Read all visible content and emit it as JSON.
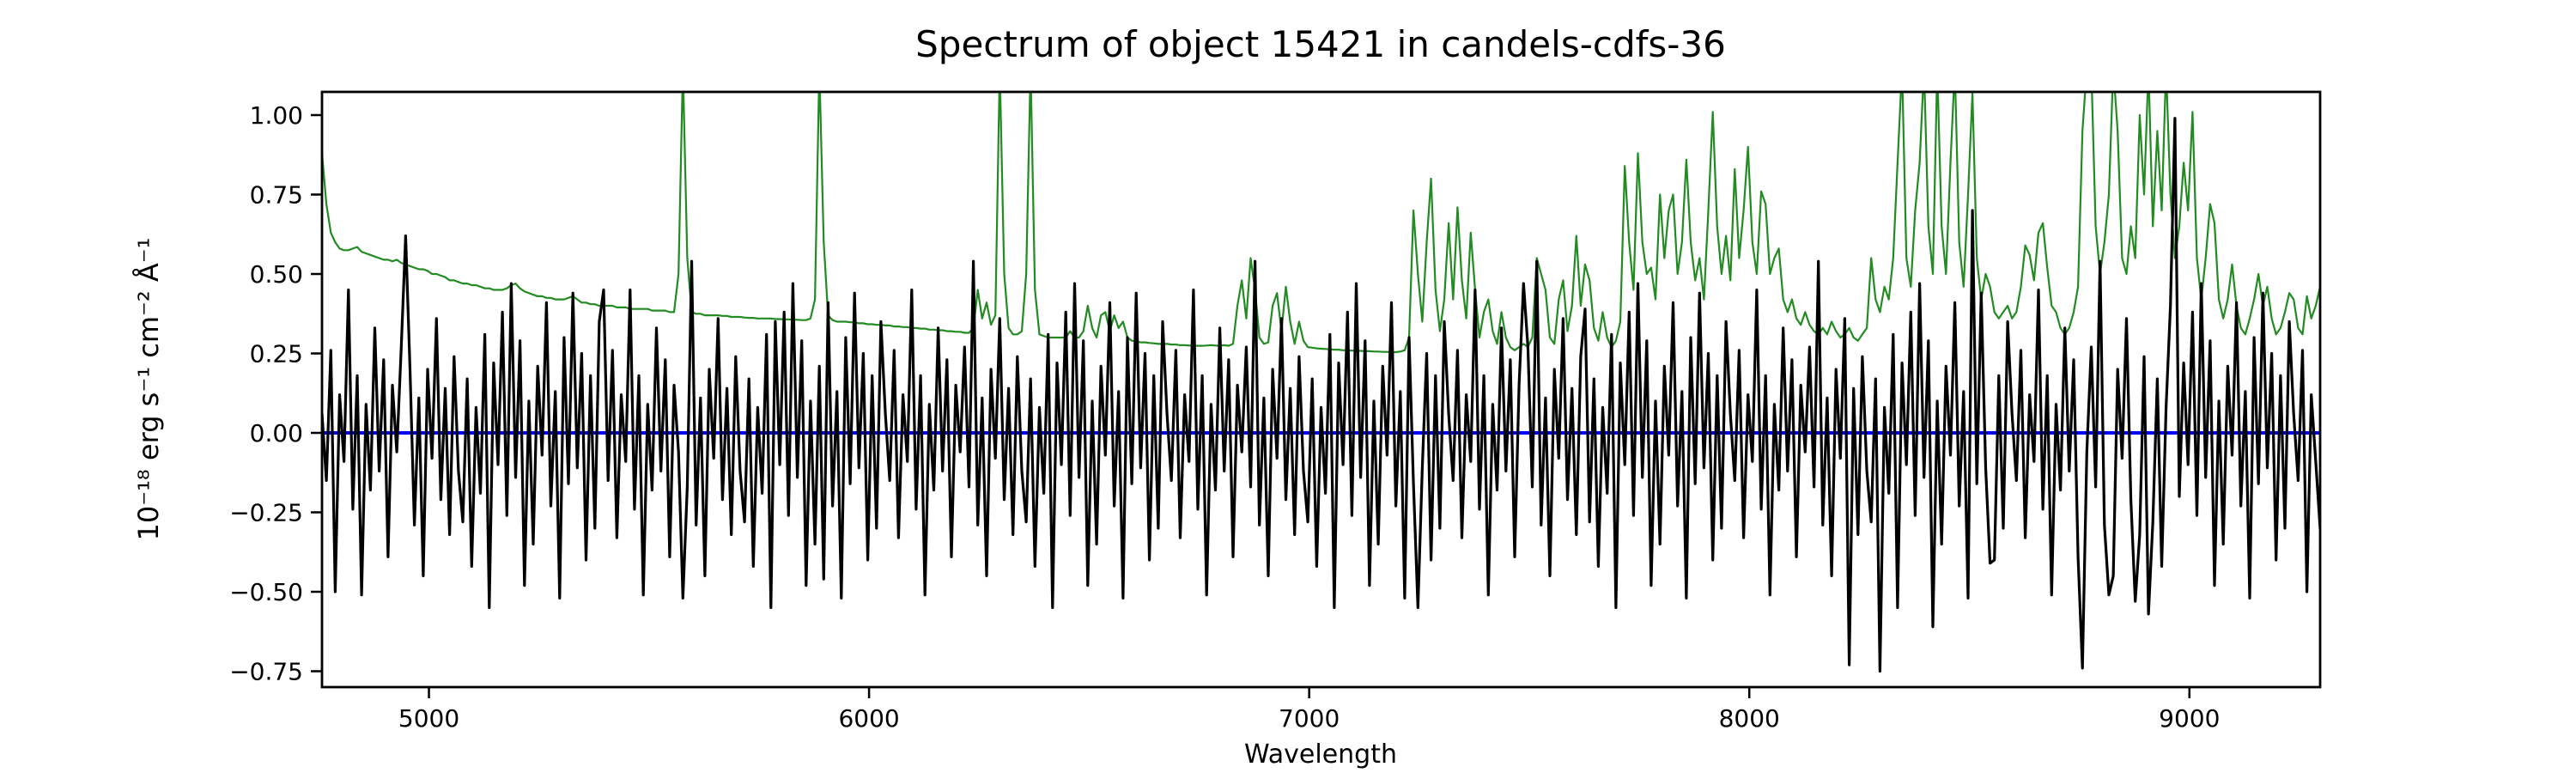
{
  "figure": {
    "background": "#ffffff",
    "axis_color": "#000000"
  },
  "chart_data": {
    "type": "line",
    "title": "Spectrum of object 15421 in candels-cdfs-36",
    "xlabel": "Wavelength",
    "ylabel": "10⁻¹⁸ erg s⁻¹ cm⁻² Å⁻¹",
    "xlim": [
      4757,
      9297
    ],
    "ylim": [
      -0.8,
      1.073
    ],
    "grid": false,
    "legend": null,
    "xticks": [
      {
        "v": 5000,
        "label": "5000"
      },
      {
        "v": 6000,
        "label": "6000"
      },
      {
        "v": 7000,
        "label": "7000"
      },
      {
        "v": 8000,
        "label": "8000"
      },
      {
        "v": 9000,
        "label": "9000"
      }
    ],
    "yticks": [
      {
        "v": 1.0,
        "label": "1.00"
      },
      {
        "v": 0.75,
        "label": "0.75"
      },
      {
        "v": 0.5,
        "label": "0.50"
      },
      {
        "v": 0.25,
        "label": "0.25"
      },
      {
        "v": 0.0,
        "label": "0.00"
      },
      {
        "v": -0.25,
        "label": "−0.25"
      },
      {
        "v": -0.5,
        "label": "−0.50"
      },
      {
        "v": -0.75,
        "label": "−0.75"
      }
    ],
    "x_start": 4757,
    "x_step": 10,
    "reference_lines": [
      {
        "name": "zero-line",
        "y": 0.0,
        "color": "#0000ff",
        "linewidth": 4
      }
    ],
    "series": [
      {
        "name": "sky-noise-spectrum",
        "color": "#228b22",
        "linewidth": 2.2,
        "values": [
          0.88,
          0.72,
          0.63,
          0.6,
          0.58,
          0.575,
          0.575,
          0.58,
          0.585,
          0.57,
          0.565,
          0.56,
          0.555,
          0.55,
          0.545,
          0.545,
          0.54,
          0.545,
          0.535,
          0.53,
          0.525,
          0.52,
          0.515,
          0.515,
          0.51,
          0.5,
          0.5,
          0.495,
          0.49,
          0.48,
          0.48,
          0.475,
          0.47,
          0.47,
          0.465,
          0.465,
          0.46,
          0.455,
          0.455,
          0.45,
          0.45,
          0.45,
          0.455,
          0.465,
          0.47,
          0.455,
          0.445,
          0.44,
          0.435,
          0.43,
          0.43,
          0.425,
          0.425,
          0.42,
          0.42,
          0.42,
          0.425,
          0.43,
          0.42,
          0.41,
          0.41,
          0.405,
          0.405,
          0.4,
          0.4,
          0.4,
          0.4,
          0.395,
          0.395,
          0.395,
          0.39,
          0.39,
          0.39,
          0.39,
          0.39,
          0.385,
          0.385,
          0.385,
          0.385,
          0.38,
          0.38,
          0.5,
          1.15,
          0.55,
          0.38,
          0.375,
          0.375,
          0.37,
          0.37,
          0.37,
          0.37,
          0.368,
          0.368,
          0.365,
          0.365,
          0.365,
          0.363,
          0.362,
          0.362,
          0.36,
          0.36,
          0.36,
          0.36,
          0.358,
          0.358,
          0.357,
          0.357,
          0.356,
          0.356,
          0.355,
          0.355,
          0.36,
          0.42,
          1.15,
          0.6,
          0.37,
          0.355,
          0.35,
          0.35,
          0.35,
          0.348,
          0.348,
          0.345,
          0.345,
          0.342,
          0.342,
          0.34,
          0.34,
          0.338,
          0.338,
          0.335,
          0.335,
          0.333,
          0.333,
          0.33,
          0.33,
          0.328,
          0.328,
          0.325,
          0.325,
          0.323,
          0.323,
          0.32,
          0.32,
          0.318,
          0.318,
          0.315,
          0.315,
          0.33,
          0.45,
          0.36,
          0.41,
          0.34,
          0.37,
          1.15,
          0.5,
          0.33,
          0.31,
          0.31,
          0.32,
          0.5,
          1.15,
          0.45,
          0.31,
          0.305,
          0.3,
          0.3,
          0.3,
          0.3,
          0.3,
          0.32,
          0.3,
          0.3,
          0.32,
          0.4,
          0.33,
          0.3,
          0.37,
          0.38,
          0.32,
          0.37,
          0.33,
          0.35,
          0.3,
          0.29,
          0.288,
          0.285,
          0.285,
          0.283,
          0.282,
          0.28,
          0.28,
          0.28,
          0.278,
          0.278,
          0.276,
          0.276,
          0.275,
          0.275,
          0.274,
          0.274,
          0.275,
          0.276,
          0.275,
          0.274,
          0.276,
          0.274,
          0.28,
          0.4,
          0.48,
          0.36,
          0.55,
          0.45,
          0.3,
          0.28,
          0.285,
          0.4,
          0.44,
          0.32,
          0.46,
          0.35,
          0.28,
          0.35,
          0.29,
          0.27,
          0.268,
          0.266,
          0.265,
          0.264,
          0.263,
          0.262,
          0.262,
          0.26,
          0.26,
          0.259,
          0.258,
          0.258,
          0.257,
          0.257,
          0.256,
          0.256,
          0.255,
          0.255,
          0.254,
          0.254,
          0.256,
          0.26,
          0.3,
          0.7,
          0.5,
          0.35,
          0.6,
          0.8,
          0.45,
          0.32,
          0.42,
          0.66,
          0.42,
          0.71,
          0.48,
          0.36,
          0.63,
          0.45,
          0.3,
          0.38,
          0.42,
          0.32,
          0.28,
          0.38,
          0.3,
          0.27,
          0.26,
          0.27,
          0.28,
          0.27,
          0.3,
          0.55,
          0.5,
          0.45,
          0.3,
          0.28,
          0.42,
          0.48,
          0.32,
          0.4,
          0.62,
          0.4,
          0.53,
          0.48,
          0.33,
          0.29,
          0.38,
          0.3,
          0.27,
          0.29,
          0.35,
          0.84,
          0.6,
          0.45,
          0.88,
          0.6,
          0.5,
          0.52,
          0.42,
          0.75,
          0.55,
          0.7,
          0.75,
          0.5,
          0.6,
          0.86,
          0.6,
          0.48,
          0.55,
          0.42,
          0.7,
          1.01,
          0.65,
          0.5,
          0.62,
          0.48,
          0.83,
          0.55,
          0.7,
          0.9,
          0.6,
          0.5,
          0.76,
          0.72,
          0.5,
          0.55,
          0.58,
          0.42,
          0.38,
          0.42,
          0.36,
          0.34,
          0.38,
          0.34,
          0.32,
          0.31,
          0.33,
          0.31,
          0.35,
          0.32,
          0.3,
          0.31,
          0.33,
          0.3,
          0.29,
          0.31,
          0.33,
          0.55,
          0.42,
          0.38,
          0.46,
          0.42,
          0.55,
          0.85,
          1.15,
          0.55,
          0.46,
          0.7,
          0.85,
          1.15,
          0.65,
          0.5,
          1.15,
          0.65,
          0.5,
          0.85,
          1.15,
          0.6,
          0.46,
          0.75,
          1.07,
          0.55,
          0.42,
          0.5,
          0.46,
          0.38,
          0.36,
          0.38,
          0.4,
          0.36,
          0.38,
          0.46,
          0.59,
          0.56,
          0.48,
          0.63,
          0.66,
          0.52,
          0.4,
          0.38,
          0.33,
          0.31,
          0.33,
          0.38,
          0.46,
          0.95,
          1.15,
          1.15,
          0.65,
          0.5,
          0.6,
          0.75,
          1.15,
          0.95,
          0.55,
          0.5,
          0.65,
          0.55,
          1.0,
          0.75,
          1.15,
          0.65,
          0.95,
          0.7,
          1.15,
          0.75,
          0.55,
          0.65,
          0.85,
          0.7,
          1.01,
          0.55,
          0.42,
          0.55,
          0.72,
          0.66,
          0.42,
          0.36,
          0.42,
          0.53,
          0.4,
          0.33,
          0.31,
          0.36,
          0.42,
          0.5,
          0.4,
          0.46,
          0.36,
          0.31,
          0.33,
          0.38,
          0.44,
          0.42,
          0.33,
          0.31,
          0.43,
          0.36,
          0.4,
          0.46
        ]
      },
      {
        "name": "object-flux-spectrum",
        "color": "#000000",
        "linewidth": 3.2,
        "values": [
          0.06,
          -0.15,
          0.26,
          -0.5,
          0.12,
          -0.09,
          0.45,
          -0.24,
          0.18,
          -0.51,
          0.09,
          -0.18,
          0.33,
          -0.12,
          0.23,
          -0.39,
          0.15,
          -0.06,
          0.27,
          0.62,
          0.2,
          -0.29,
          0.11,
          -0.45,
          0.2,
          -0.08,
          0.36,
          -0.21,
          0.14,
          -0.32,
          0.24,
          -0.12,
          -0.28,
          0.17,
          -0.42,
          0.08,
          -0.19,
          0.31,
          -0.55,
          0.22,
          -0.1,
          0.38,
          -0.26,
          0.47,
          -0.14,
          0.29,
          -0.48,
          0.1,
          -0.35,
          0.21,
          -0.07,
          0.41,
          -0.23,
          0.13,
          -0.52,
          0.3,
          -0.16,
          0.44,
          -0.11,
          0.25,
          -0.4,
          0.18,
          -0.3,
          0.35,
          0.45,
          -0.15,
          0.26,
          -0.33,
          0.12,
          -0.09,
          0.45,
          -0.24,
          0.18,
          -0.51,
          0.09,
          -0.18,
          0.33,
          -0.12,
          0.23,
          -0.39,
          0.15,
          -0.06,
          -0.52,
          -0.17,
          0.54,
          -0.29,
          0.11,
          -0.45,
          0.2,
          -0.08,
          0.36,
          -0.21,
          0.14,
          -0.32,
          0.24,
          -0.12,
          -0.28,
          0.17,
          -0.42,
          0.08,
          -0.19,
          0.31,
          -0.55,
          0.35,
          -0.1,
          0.38,
          -0.26,
          0.47,
          -0.14,
          0.29,
          -0.48,
          0.1,
          -0.35,
          0.21,
          -0.46,
          0.41,
          -0.23,
          0.13,
          -0.52,
          0.3,
          -0.16,
          0.44,
          -0.11,
          0.25,
          -0.4,
          0.18,
          -0.3,
          0.35,
          0.06,
          -0.15,
          0.26,
          -0.33,
          0.12,
          -0.09,
          0.45,
          -0.24,
          0.18,
          -0.51,
          0.09,
          -0.18,
          0.33,
          -0.12,
          0.23,
          -0.39,
          0.15,
          -0.06,
          0.27,
          -0.17,
          0.54,
          -0.29,
          0.11,
          -0.45,
          0.2,
          -0.08,
          0.36,
          -0.21,
          0.14,
          -0.32,
          0.24,
          -0.12,
          -0.28,
          0.17,
          -0.42,
          0.08,
          -0.19,
          0.31,
          -0.55,
          0.22,
          -0.1,
          0.38,
          -0.26,
          0.47,
          -0.14,
          0.29,
          -0.48,
          0.1,
          -0.35,
          0.21,
          -0.07,
          0.41,
          -0.23,
          0.13,
          -0.52,
          0.3,
          -0.16,
          0.44,
          -0.11,
          0.25,
          -0.4,
          0.18,
          -0.3,
          0.35,
          0.06,
          -0.15,
          0.26,
          -0.33,
          0.12,
          -0.09,
          0.45,
          -0.24,
          0.18,
          -0.51,
          0.09,
          -0.18,
          0.33,
          -0.12,
          0.23,
          -0.39,
          0.15,
          -0.06,
          0.27,
          -0.17,
          0.54,
          -0.29,
          0.11,
          -0.45,
          0.2,
          -0.08,
          0.36,
          -0.21,
          0.14,
          -0.32,
          0.24,
          -0.12,
          -0.28,
          0.17,
          -0.42,
          0.08,
          -0.19,
          0.31,
          -0.55,
          0.22,
          -0.1,
          0.38,
          -0.26,
          0.47,
          -0.14,
          0.29,
          -0.48,
          0.1,
          -0.35,
          0.21,
          -0.07,
          0.41,
          -0.23,
          0.13,
          -0.52,
          0.3,
          -0.16,
          -0.55,
          -0.11,
          0.25,
          -0.4,
          0.18,
          -0.3,
          0.35,
          0.06,
          -0.15,
          0.26,
          -0.33,
          0.12,
          -0.09,
          0.45,
          -0.24,
          0.18,
          -0.51,
          0.09,
          -0.18,
          0.33,
          -0.12,
          0.23,
          -0.39,
          0.15,
          0.47,
          0.27,
          -0.17,
          0.54,
          -0.29,
          0.11,
          -0.45,
          0.2,
          -0.08,
          0.36,
          -0.21,
          0.14,
          -0.32,
          0.24,
          0.39,
          -0.28,
          0.17,
          -0.42,
          0.08,
          -0.19,
          0.31,
          -0.55,
          0.22,
          -0.1,
          0.38,
          -0.26,
          0.47,
          -0.14,
          0.29,
          -0.48,
          0.1,
          -0.35,
          0.21,
          -0.07,
          0.41,
          -0.23,
          0.13,
          -0.52,
          0.3,
          -0.16,
          0.44,
          -0.11,
          0.25,
          -0.4,
          0.18,
          -0.3,
          0.35,
          0.06,
          -0.15,
          0.26,
          -0.33,
          0.12,
          -0.09,
          0.45,
          -0.24,
          0.18,
          -0.51,
          0.09,
          -0.18,
          0.33,
          -0.12,
          0.23,
          -0.39,
          0.15,
          -0.06,
          0.27,
          -0.17,
          0.54,
          -0.29,
          0.11,
          -0.45,
          0.2,
          -0.08,
          0.36,
          -0.73,
          0.14,
          -0.32,
          0.24,
          -0.12,
          -0.28,
          0.17,
          -0.75,
          0.08,
          -0.19,
          0.31,
          -0.55,
          0.22,
          -0.1,
          0.38,
          -0.26,
          0.47,
          -0.14,
          0.29,
          -0.61,
          0.1,
          -0.35,
          0.21,
          -0.07,
          0.41,
          -0.23,
          0.13,
          -0.52,
          0.7,
          -0.16,
          0.44,
          -0.11,
          -0.41,
          -0.4,
          0.18,
          -0.3,
          0.35,
          0.06,
          -0.15,
          0.26,
          -0.33,
          0.12,
          -0.09,
          0.45,
          -0.24,
          0.18,
          -0.51,
          0.09,
          -0.18,
          0.33,
          -0.12,
          0.23,
          -0.39,
          -0.74,
          -0.06,
          0.27,
          -0.17,
          0.54,
          -0.29,
          -0.51,
          -0.45,
          0.2,
          -0.08,
          0.36,
          -0.21,
          -0.53,
          -0.32,
          0.24,
          -0.57,
          -0.28,
          0.17,
          -0.42,
          0.08,
          0.4,
          0.99,
          -0.2,
          0.22,
          -0.1,
          0.38,
          -0.26,
          0.47,
          -0.14,
          0.29,
          -0.48,
          0.1,
          -0.35,
          0.21,
          -0.07,
          0.41,
          -0.23,
          0.13,
          -0.52,
          0.3,
          -0.16,
          0.44,
          -0.11,
          0.25,
          -0.4,
          0.18,
          -0.3,
          0.35,
          0.06,
          -0.15,
          0.26,
          -0.5,
          0.12,
          -0.09,
          -0.3
        ]
      }
    ]
  }
}
